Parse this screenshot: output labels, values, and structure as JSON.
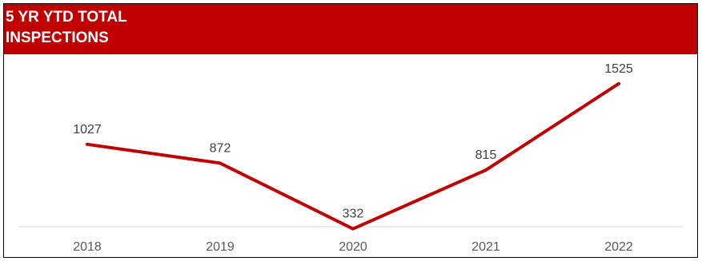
{
  "header": {
    "title": "5 YR YTD TOTAL INSPECTIONS"
  },
  "colors": {
    "accent": "#c00000",
    "line": "#c00000",
    "axis": "#d9d9d9",
    "label": "#404040"
  },
  "chart_data": {
    "type": "line",
    "title": "5 YR YTD TOTAL INSPECTIONS",
    "categories": [
      "2018",
      "2019",
      "2020",
      "2021",
      "2022"
    ],
    "values": [
      1027,
      872,
      332,
      815,
      1525
    ],
    "xlabel": "",
    "ylabel": "",
    "ylim": [
      350,
      1550
    ],
    "grid": false,
    "legend": "none",
    "data_labels": true
  }
}
